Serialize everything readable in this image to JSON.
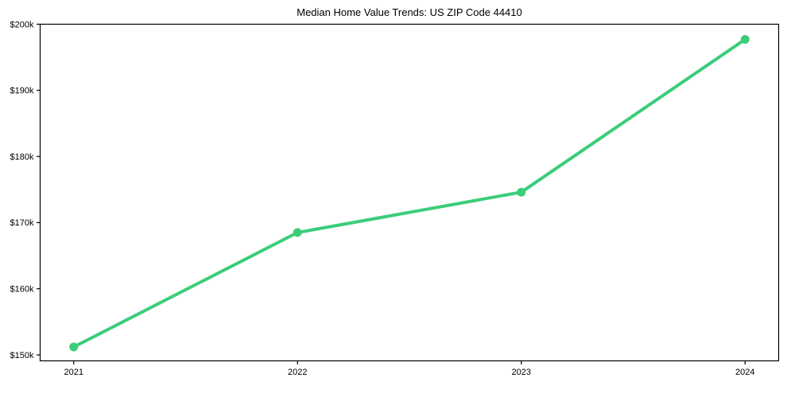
{
  "page": {
    "background_color": "#ffffff"
  },
  "chart_data": {
    "type": "line",
    "title": "Median Home Value Trends: US ZIP Code 44410",
    "xlabel": "",
    "ylabel": "",
    "categories": [
      "2021",
      "2022",
      "2023",
      "2024"
    ],
    "values": [
      151200,
      168500,
      174600,
      197700
    ],
    "y_ticks": [
      {
        "value": 150000,
        "label": "$150k"
      },
      {
        "value": 160000,
        "label": "$160k"
      },
      {
        "value": 170000,
        "label": "$170k"
      },
      {
        "value": 180000,
        "label": "$180k"
      },
      {
        "value": 190000,
        "label": "$190k"
      },
      {
        "value": 200000,
        "label": "$200k"
      }
    ],
    "ylim": [
      149100,
      200000
    ],
    "grid": false,
    "legend": "none",
    "line_color": "#3bcd7a",
    "marker_color": "#3bcd7a",
    "marker": "circle",
    "axis_color": "#000000",
    "text_color": "#000000"
  }
}
